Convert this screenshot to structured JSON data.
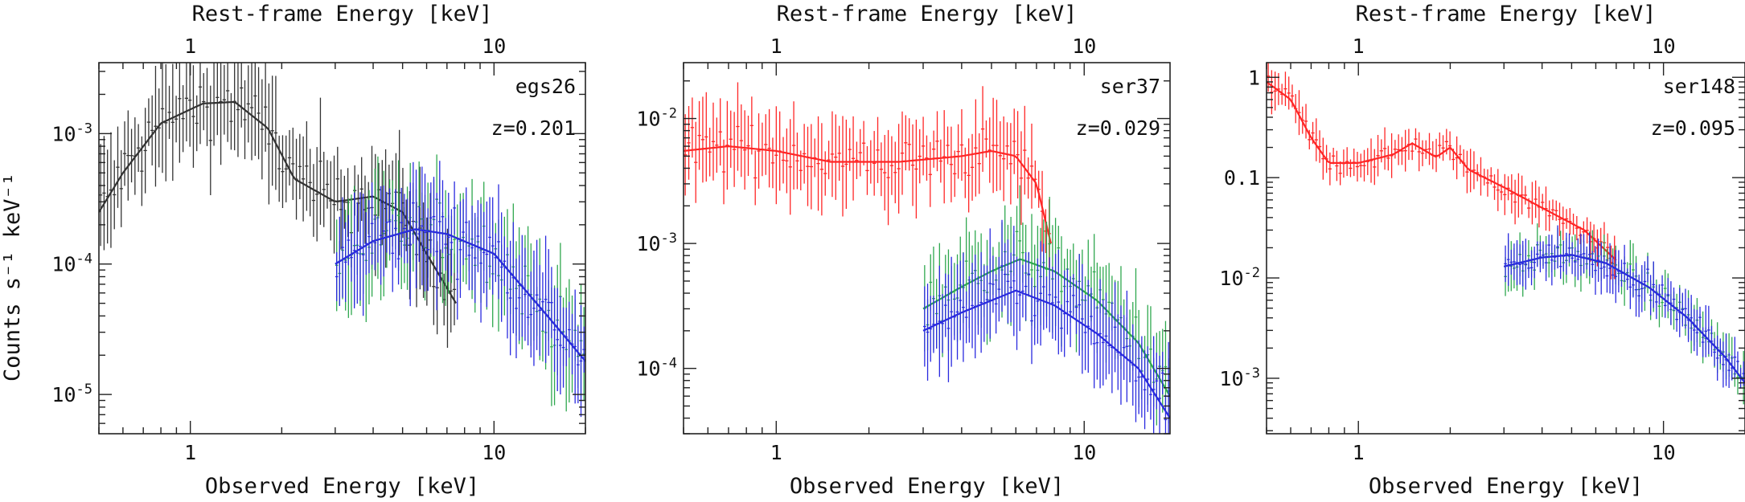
{
  "figure": {
    "y_axis_title": "Counts s⁻¹ keV⁻¹",
    "x_axis_title": "Observed Energy [keV]",
    "top_axis_title": "Rest-frame Energy [keV]"
  },
  "colors": {
    "black_series": "#333333",
    "red_series": "#ff2626",
    "green_series": "#2fa84f",
    "blue_series": "#2a2adf"
  },
  "chart_data": [
    {
      "type": "scatter",
      "name": "egs26",
      "source_label": "egs26",
      "redshift_label": "z=0.201",
      "redshift": 0.201,
      "xscale": "log",
      "yscale": "log",
      "xlim": [
        0.5,
        20
      ],
      "ylim": [
        5e-06,
        0.0035
      ],
      "xlabel": "Observed Energy [keV]",
      "top_xlabel": "Rest-frame Energy [keV]",
      "x_ticklabels": [
        {
          "v": 1,
          "t": "1"
        },
        {
          "v": 10,
          "t": "10"
        }
      ],
      "top_ticklabels": [
        {
          "v": 1,
          "t": "1"
        },
        {
          "v": 10,
          "t": "10"
        }
      ],
      "y_ticklabels": [
        {
          "v": 0.001,
          "t": "10-3"
        },
        {
          "v": 0.0001,
          "t": "10-4"
        },
        {
          "v": 1e-05,
          "t": "10-5"
        }
      ],
      "series": [
        {
          "name": "black",
          "color": "#333333",
          "xmin": 0.5,
          "xmax": 7.5,
          "scatter": 0.22,
          "model": [
            [
              0.5,
              0.00025
            ],
            [
              0.6,
              0.0005
            ],
            [
              0.8,
              0.0012
            ],
            [
              1.1,
              0.0017
            ],
            [
              1.4,
              0.00175
            ],
            [
              1.8,
              0.0011
            ],
            [
              2.2,
              0.00045
            ],
            [
              3.0,
              0.0003
            ],
            [
              4.0,
              0.00033
            ],
            [
              5.0,
              0.00025
            ],
            [
              6.0,
              0.00012
            ],
            [
              7.5,
              5e-05
            ]
          ]
        },
        {
          "name": "green",
          "color": "#2fa84f",
          "xmin": 3.0,
          "xmax": 20,
          "scatter": 0.22,
          "model": [
            [
              3.0,
              0.0001
            ],
            [
              4.0,
              0.00015
            ],
            [
              5.5,
              0.000185
            ],
            [
              7.0,
              0.00017
            ],
            [
              10.0,
              0.00012
            ],
            [
              15.0,
              4e-05
            ],
            [
              20.0,
              1.8e-05
            ]
          ]
        },
        {
          "name": "blue",
          "color": "#2a2adf",
          "xmin": 3.0,
          "xmax": 20,
          "scatter": 0.22,
          "model": [
            [
              3.0,
              0.0001
            ],
            [
              4.0,
              0.00015
            ],
            [
              5.5,
              0.000185
            ],
            [
              7.0,
              0.00017
            ],
            [
              10.0,
              0.00012
            ],
            [
              15.0,
              4e-05
            ],
            [
              20.0,
              1.8e-05
            ]
          ]
        }
      ]
    },
    {
      "type": "scatter",
      "name": "ser37",
      "source_label": "ser37",
      "redshift_label": "z=0.029",
      "redshift": 0.029,
      "xscale": "log",
      "yscale": "log",
      "xlim": [
        0.5,
        19
      ],
      "ylim": [
        3e-05,
        0.028
      ],
      "xlabel": "Observed Energy [keV]",
      "top_xlabel": "Rest-frame Energy [keV]",
      "x_ticklabels": [
        {
          "v": 1,
          "t": "1"
        },
        {
          "v": 10,
          "t": "10"
        }
      ],
      "top_ticklabels": [
        {
          "v": 1,
          "t": "1"
        },
        {
          "v": 10,
          "t": "10"
        }
      ],
      "y_ticklabels": [
        {
          "v": 0.01,
          "t": "10-2"
        },
        {
          "v": 0.001,
          "t": "10-3"
        },
        {
          "v": 0.0001,
          "t": "10-4"
        }
      ],
      "series": [
        {
          "name": "red",
          "color": "#ff2626",
          "xmin": 0.5,
          "xmax": 7.8,
          "scatter": 0.18,
          "model": [
            [
              0.5,
              0.0055
            ],
            [
              0.7,
              0.006
            ],
            [
              1.0,
              0.0055
            ],
            [
              1.5,
              0.0045
            ],
            [
              2.5,
              0.0045
            ],
            [
              4.0,
              0.005
            ],
            [
              5.0,
              0.0055
            ],
            [
              6.0,
              0.005
            ],
            [
              7.0,
              0.003
            ],
            [
              7.8,
              0.001
            ]
          ]
        },
        {
          "name": "green",
          "color": "#2fa84f",
          "xmin": 3.0,
          "xmax": 19,
          "scatter": 0.2,
          "model": [
            [
              3.0,
              0.0003
            ],
            [
              4.0,
              0.00045
            ],
            [
              5.0,
              0.0006
            ],
            [
              6.2,
              0.00075
            ],
            [
              8.0,
              0.0006
            ],
            [
              11.0,
              0.00035
            ],
            [
              15.0,
              0.00016
            ],
            [
              19.0,
              6e-05
            ]
          ]
        },
        {
          "name": "blue",
          "color": "#2a2adf",
          "xmin": 3.0,
          "xmax": 19,
          "scatter": 0.2,
          "model": [
            [
              3.0,
              0.0002
            ],
            [
              4.0,
              0.00028
            ],
            [
              5.0,
              0.00035
            ],
            [
              6.0,
              0.00042
            ],
            [
              8.0,
              0.00032
            ],
            [
              11.0,
              0.00019
            ],
            [
              15.0,
              0.0001
            ],
            [
              19.0,
              4e-05
            ]
          ]
        }
      ]
    },
    {
      "type": "scatter",
      "name": "ser148",
      "source_label": "ser148",
      "redshift_label": "z=0.095",
      "redshift": 0.095,
      "xscale": "log",
      "yscale": "log",
      "xlim": [
        0.5,
        18.5
      ],
      "ylim": [
        0.00028,
        1.4
      ],
      "xlabel": "Observed Energy [keV]",
      "top_xlabel": "Rest-frame Energy [keV]",
      "x_ticklabels": [
        {
          "v": 1,
          "t": "1"
        },
        {
          "v": 10,
          "t": "10"
        }
      ],
      "top_ticklabels": [
        {
          "v": 1,
          "t": "1"
        },
        {
          "v": 10,
          "t": "10"
        }
      ],
      "y_ticklabels": [
        {
          "v": 1,
          "t": "1"
        },
        {
          "v": 0.1,
          "t": "0.1"
        },
        {
          "v": 0.01,
          "t": "10-2"
        },
        {
          "v": 0.001,
          "t": "10-3"
        }
      ],
      "series": [
        {
          "name": "red",
          "color": "#ff2626",
          "xmin": 0.5,
          "xmax": 7.0,
          "scatter": 0.1,
          "model": [
            [
              0.5,
              0.9
            ],
            [
              0.6,
              0.6
            ],
            [
              0.7,
              0.25
            ],
            [
              0.8,
              0.14
            ],
            [
              1.0,
              0.14
            ],
            [
              1.3,
              0.17
            ],
            [
              1.5,
              0.22
            ],
            [
              1.8,
              0.16
            ],
            [
              2.0,
              0.2
            ],
            [
              2.3,
              0.12
            ],
            [
              3.0,
              0.08
            ],
            [
              4.0,
              0.05
            ],
            [
              5.5,
              0.03
            ],
            [
              7.0,
              0.015
            ]
          ]
        },
        {
          "name": "green",
          "color": "#2fa84f",
          "xmin": 3.0,
          "xmax": 18.5,
          "scatter": 0.12,
          "model": [
            [
              3.0,
              0.013
            ],
            [
              4.0,
              0.016
            ],
            [
              5.0,
              0.017
            ],
            [
              6.5,
              0.014
            ],
            [
              9.0,
              0.008
            ],
            [
              12.0,
              0.004
            ],
            [
              16.0,
              0.0016
            ],
            [
              18.5,
              0.0009
            ]
          ]
        },
        {
          "name": "blue",
          "color": "#2a2adf",
          "xmin": 3.0,
          "xmax": 18.5,
          "scatter": 0.12,
          "model": [
            [
              3.0,
              0.013
            ],
            [
              4.0,
              0.016
            ],
            [
              5.0,
              0.017
            ],
            [
              6.5,
              0.014
            ],
            [
              9.0,
              0.008
            ],
            [
              12.0,
              0.004
            ],
            [
              16.0,
              0.0016
            ],
            [
              18.5,
              0.0009
            ]
          ]
        }
      ]
    }
  ]
}
